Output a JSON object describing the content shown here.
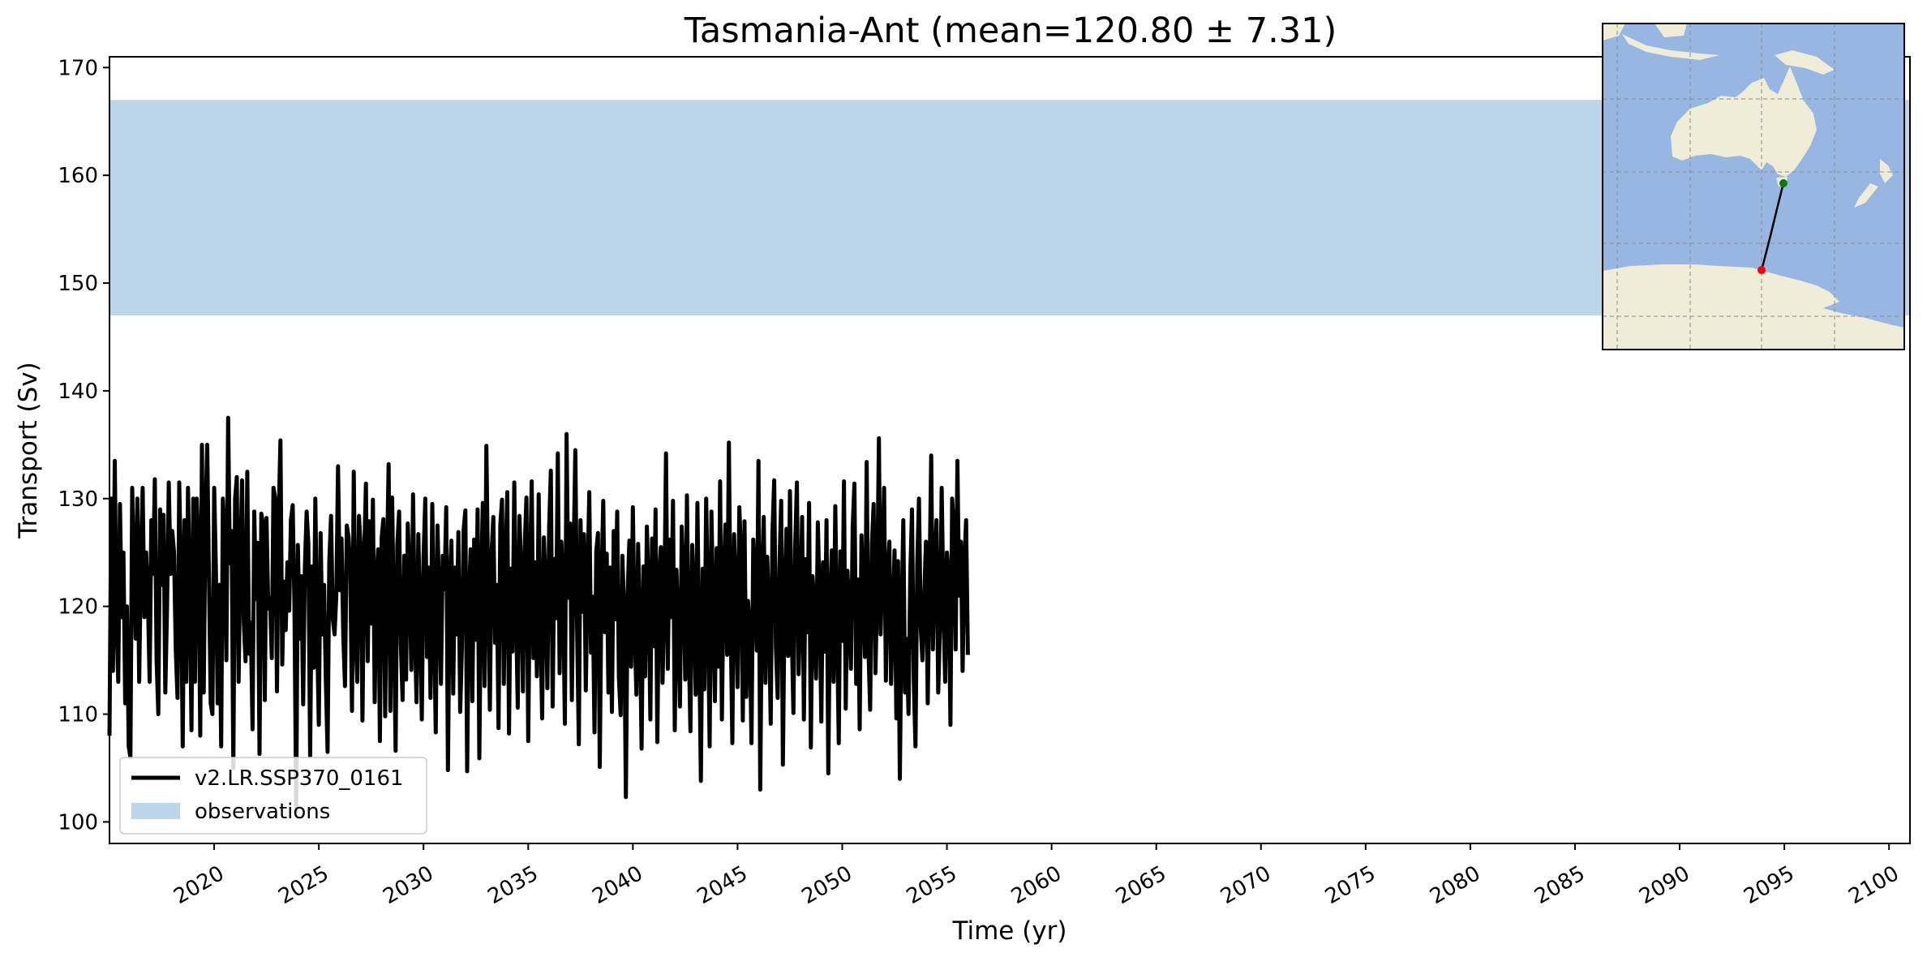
{
  "chart_data": {
    "type": "line",
    "title": "Tasmania-Ant (mean=120.80 ± 7.31)",
    "xlabel": "Time (yr)",
    "ylabel": "Transport (Sv)",
    "xlim": [
      2015.0,
      2101.0
    ],
    "ylim": [
      98,
      171
    ],
    "xticks": [
      2020,
      2025,
      2030,
      2035,
      2040,
      2045,
      2050,
      2055,
      2060,
      2065,
      2070,
      2075,
      2080,
      2085,
      2090,
      2095,
      2100
    ],
    "xtick_labels": [
      "2020",
      "2025",
      "2030",
      "2035",
      "2040",
      "2045",
      "2050",
      "2055",
      "2060",
      "2065",
      "2070",
      "2075",
      "2080",
      "2085",
      "2090",
      "2095",
      "2100"
    ],
    "yticks": [
      100,
      110,
      120,
      130,
      140,
      150,
      160,
      170
    ],
    "ytick_labels": [
      "100",
      "110",
      "120",
      "130",
      "140",
      "150",
      "160",
      "170"
    ],
    "grid": false,
    "legend_position": "lower-left",
    "observations": {
      "name": "observations",
      "low": 147.0,
      "high": 167.0,
      "color": "#bad6e8"
    },
    "series": [
      {
        "name": "v2.LR.SSP370_0161",
        "color": "#000000",
        "x_start": 2015.0,
        "x_step": 0.0833333,
        "values": [
          108,
          130,
          114,
          133.5,
          119,
          113,
          129.5,
          119,
          125,
          111,
          120,
          107,
          106,
          131,
          124,
          117,
          130,
          113,
          124,
          131,
          119,
          125,
          121,
          113,
          128,
          123,
          131.8,
          115,
          110,
          129,
          122,
          128.5,
          112,
          120,
          131.5,
          123,
          127,
          125,
          116,
          111.5,
          131.5,
          123,
          107,
          128,
          113,
          131,
          122,
          108.5,
          130,
          113,
          130,
          126,
          108,
          135,
          112,
          128,
          135,
          123,
          111,
          110,
          131,
          123.5,
          111,
          122,
          107,
          130,
          126.5,
          115,
          137.5,
          124,
          127,
          105,
          130,
          132,
          113,
          124,
          131.7,
          118.5,
          114.9,
          132.5,
          115.6,
          118.5,
          108.6,
          128.8,
          120.7,
          125.9,
          106.3,
          128.6,
          127.6,
          111.3,
          128.2,
          119.8,
          120.8,
          115.2,
          131.0,
          130.0,
          112.1,
          128.6,
          135.4,
          114.6,
          122.3,
          117.8,
          124.1,
          119.6,
          128.0,
          129.4,
          120.3,
          101.0,
          125.7,
          117.0,
          122.8,
          110.9,
          123.6,
          128.8,
          125.8,
          106.1,
          123.7,
          114.3,
          130.0,
          117.3,
          109.0,
          126.8,
          117.4,
          122.0,
          113.3,
          106.5,
          124.1,
          128.4,
          118.9,
          117.4,
          121.1,
          133.0,
          121.5,
          126.3,
          117.2,
          112.6,
          127.5,
          126.5,
          123.4,
          110.3,
          132.5,
          117.7,
          113.0,
          128.4,
          125.4,
          109.4,
          124.9,
          131.4,
          114.9,
          127.9,
          118.4,
          129.9,
          111.1,
          122.4,
          125.3,
          107.5,
          126.4,
          128.1,
          109.8,
          123.5,
          133.2,
          110.3,
          130.1,
          118.7,
          106.6,
          125.7,
          128.8,
          116.5,
          111.3,
          124.7,
          113.2,
          127.7,
          122.4,
          114.1,
          130.4,
          118.0,
          111.1,
          126.7,
          119.4,
          109.5,
          124.5,
          130.0,
          115.3,
          123.6,
          111.5,
          129.5,
          118.5,
          108.3,
          127.5,
          120.8,
          112.8,
          124.7,
          121.6,
          129.2,
          104.8,
          122.0,
          126.1,
          111.9,
          123.6,
          117.4,
          126.9,
          110.2,
          116.1,
          127.1,
          128.9,
          104.7,
          120.4,
          125.3,
          111.2,
          126.2,
          116.9,
          129.0,
          105.9,
          122.0,
          129.6,
          112.6,
          134.9,
          122.3,
          110.4,
          124.9,
          128.3,
          116.6,
          122.0,
          108.7,
          127.6,
          129.9,
          112.8,
          123.9,
          130.6,
          108.2,
          123.5,
          115.8,
          131.5,
          120.1,
          110.6,
          128.4,
          122.9,
          112.1,
          125.6,
          130.1,
          107.5,
          123.0,
          131.6,
          115.2,
          124.1,
          113.5,
          130.4,
          118.2,
          109.6,
          126.4,
          121.8,
          112.4,
          127.3,
          132.6,
          110.7,
          124.4,
          118.9,
          134.2,
          113.8,
          126.0,
          121.5,
          109.1,
          136.0,
          120.8,
          127.7,
          111.3,
          124.5,
          134.5,
          118.3,
          107.2,
          128.0,
          119.5,
          126.7,
          112.2,
          122.4,
          130.6,
          115.7,
          120.9,
          108.3,
          125.1,
          126.8,
          105.1,
          121.7,
          129.8,
          117.6,
          124.9,
          112.0,
          123.6,
          110.2,
          127.0,
          118.8,
          128.8,
          113.4,
          109.9,
          124.7,
          119.3,
          102.3,
          121.2,
          126.1,
          114.4,
          129.2,
          117.9,
          111.8,
          125.8,
          118.1,
          106.8,
          123.7,
          113.5,
          127.4,
          121.6,
          109.5,
          126.3,
          116.3,
          129.0,
          107.4,
          122.5,
          125.5,
          112.9,
          120.3,
          134.2,
          114.2,
          126.2,
          119.0,
          129.8,
          108.5,
          123.4,
          118.1,
          110.7,
          127.4,
          122.8,
          113.2,
          130.3,
          116.6,
          108.4,
          125.7,
          121.0,
          111.8,
          129.6,
          116.6,
          103.8,
          123.5,
          112.3,
          130.0,
          120.4,
          107.0,
          128.8,
          119.6,
          111.2,
          125.4,
          114.4,
          131.6,
          109.5,
          122.2,
          127.6,
          115.5,
          135.2,
          118.8,
          107.3,
          126.7,
          121.3,
          112.5,
          129.2,
          124.8,
          109.4,
          127.9,
          111.6,
          120.5,
          117.6,
          107.3,
          126.2,
          122.5,
          115.9,
          133.5,
          103.0,
          121.8,
          128.3,
          112.9,
          124.6,
          119.6,
          109.1,
          126.8,
          131.7,
          116.2,
          111.5,
          123.5,
          129.8,
          105.3,
          121.2,
          127.2,
          115.4,
          130.7,
          118.1,
          110.1,
          125.4,
          131.5,
          113.7,
          120.0,
          128.3,
          109.5,
          124.4,
          117.6,
          129.6,
          106.9,
          122.8,
          119.6,
          113.3,
          127.8,
          121.0,
          109.3,
          124.1,
          115.8,
          128.0,
          104.5,
          120.4,
          125.2,
          113.0,
          129.3,
          118.7,
          107.3,
          125.1,
          116.8,
          131.6,
          110.5,
          123.3,
          119.6,
          114.2,
          127.4,
          131.4,
          112.8,
          122.5,
          108.6,
          126.6,
          120.9,
          115.3,
          133.4,
          116.1,
          110.4,
          125.8,
          129.5,
          113.8,
          121.2,
          135.6,
          117.4,
          124.0,
          131.0,
          113.1,
          122.8,
          126.0,
          112.8,
          119.3,
          125.2,
          109.6,
          124.2,
          104.0,
          119.0,
          128.0,
          112.0,
          117.0,
          110.0,
          123.0,
          129.0,
          113.0,
          107.0,
          124.0,
          130.0,
          118.0,
          115.0,
          121.0,
          126.0,
          111.0,
          122.0,
          134.0,
          116.0,
          124.0,
          128.0,
          112.0,
          118.0,
          131.0,
          120.0,
          113.0,
          125.0,
          123.0,
          109.0,
          130.0,
          127.0,
          116.0,
          133.5,
          121.0,
          126.0,
          114.0,
          124.0,
          128.0,
          115.5
        ]
      }
    ]
  },
  "inset_map": {
    "ocean_color": "#98b6e2",
    "land_color": "#efecd8",
    "section_start_marker_color": "#008000",
    "section_end_marker_color": "#ff0000",
    "section_line_color": "#000000",
    "gridlines": true
  }
}
